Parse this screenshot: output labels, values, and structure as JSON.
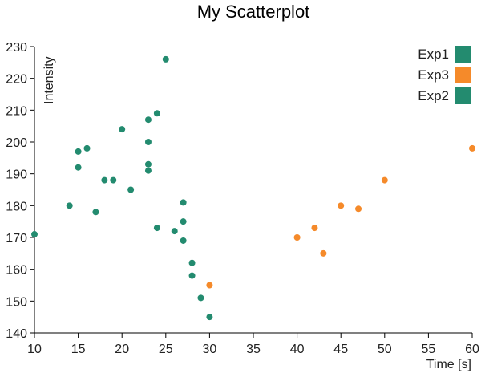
{
  "chart_data": {
    "type": "scatter",
    "title": "My Scatterplot",
    "xlabel": "Time [s]",
    "ylabel": "Intensity",
    "xlim": [
      10,
      60
    ],
    "ylim": [
      140,
      230
    ],
    "xticks": [
      10,
      15,
      20,
      25,
      30,
      35,
      40,
      45,
      50,
      55,
      60
    ],
    "yticks": [
      140,
      150,
      160,
      170,
      180,
      190,
      200,
      210,
      220,
      230
    ],
    "grid": false,
    "legend_position": "top-right",
    "legend": [
      {
        "name": "Exp1",
        "color": "#238b6f"
      },
      {
        "name": "Exp3",
        "color": "#f58a2a"
      },
      {
        "name": "Exp2",
        "color": "#238b6f"
      }
    ],
    "series": [
      {
        "name": "Exp1",
        "color": "#238b6f",
        "points": [
          {
            "x": 10,
            "y": 171
          },
          {
            "x": 14,
            "y": 180
          },
          {
            "x": 15,
            "y": 197
          },
          {
            "x": 15,
            "y": 192
          },
          {
            "x": 16,
            "y": 198
          },
          {
            "x": 17,
            "y": 178
          },
          {
            "x": 18,
            "y": 188
          },
          {
            "x": 19,
            "y": 188
          },
          {
            "x": 20,
            "y": 204
          },
          {
            "x": 21,
            "y": 185
          },
          {
            "x": 23,
            "y": 207
          },
          {
            "x": 23,
            "y": 200
          },
          {
            "x": 23,
            "y": 193
          },
          {
            "x": 23,
            "y": 191
          },
          {
            "x": 24,
            "y": 209
          },
          {
            "x": 24,
            "y": 173
          },
          {
            "x": 25,
            "y": 226
          }
        ]
      },
      {
        "name": "Exp2",
        "color": "#238b6f",
        "points": [
          {
            "x": 26,
            "y": 172
          },
          {
            "x": 27,
            "y": 181
          },
          {
            "x": 27,
            "y": 175
          },
          {
            "x": 27,
            "y": 169
          },
          {
            "x": 28,
            "y": 162
          },
          {
            "x": 28,
            "y": 158
          },
          {
            "x": 29,
            "y": 151
          },
          {
            "x": 30,
            "y": 145
          }
        ]
      },
      {
        "name": "Exp3",
        "color": "#f58a2a",
        "points": [
          {
            "x": 30,
            "y": 155
          },
          {
            "x": 40,
            "y": 170
          },
          {
            "x": 42,
            "y": 173
          },
          {
            "x": 43,
            "y": 165
          },
          {
            "x": 45,
            "y": 180
          },
          {
            "x": 47,
            "y": 179
          },
          {
            "x": 50,
            "y": 188
          },
          {
            "x": 60,
            "y": 198
          }
        ]
      }
    ]
  }
}
